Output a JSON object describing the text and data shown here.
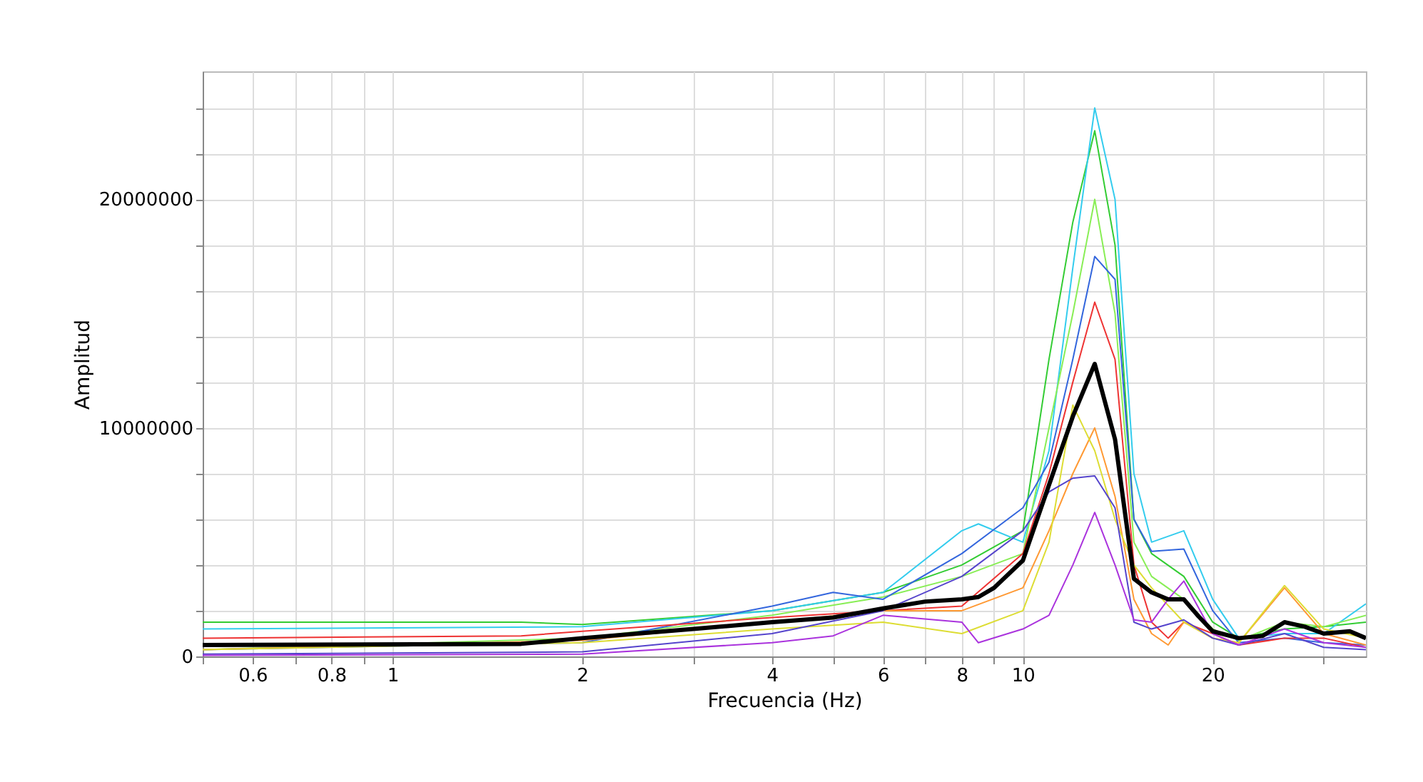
{
  "chart_data": {
    "type": "line",
    "xlabel": "Frecuencia (Hz)",
    "ylabel": "Amplitud",
    "log": "x",
    "grid": true,
    "marker": "none",
    "line_style": "solid",
    "xlim": [
      0.5,
      35
    ],
    "ylim": [
      0,
      25600000
    ],
    "xticks": [
      {
        "value": 0.5,
        "label": null
      },
      0.6,
      {
        "value": 0.7,
        "label": null
      },
      0.8,
      {
        "value": 0.9,
        "label": null
      },
      1,
      2,
      {
        "value": 3,
        "label": null
      },
      4,
      {
        "value": 5,
        "label": null
      },
      6,
      {
        "value": 7,
        "label": null
      },
      8,
      {
        "value": 9,
        "label": null
      },
      10,
      20,
      {
        "value": 30,
        "label": null
      }
    ],
    "yticks": [
      0,
      {
        "value": 2000000,
        "label": null
      },
      {
        "value": 4000000,
        "label": null
      },
      {
        "value": 6000000,
        "label": null
      },
      {
        "value": 8000000,
        "label": null
      },
      10000000,
      {
        "value": 12000000,
        "label": null
      },
      {
        "value": 14000000,
        "label": null
      },
      {
        "value": 16000000,
        "label": null
      },
      {
        "value": 18000000,
        "label": null
      },
      20000000,
      {
        "value": 22000000,
        "label": null
      },
      {
        "value": 24000000,
        "label": null
      }
    ],
    "series": [
      {
        "color": "#33cc33",
        "x": [
          0.5,
          1.6,
          2,
          4,
          6,
          8,
          10,
          11,
          12,
          13,
          14,
          15,
          16,
          18,
          20,
          22,
          26,
          30,
          35
        ],
        "values": [
          1500000,
          1500000,
          1400000,
          2000000,
          2800000,
          4000000,
          5500000,
          13000000,
          19000000,
          23000000,
          18000000,
          6000000,
          4500000,
          3500000,
          1500000,
          800000,
          1200000,
          1300000,
          1500000
        ]
      },
      {
        "color": "#33ccee",
        "x": [
          0.5,
          2,
          4,
          6,
          8,
          8.5,
          10,
          11,
          12,
          13,
          14,
          15,
          16,
          18,
          20,
          22,
          26,
          30,
          35
        ],
        "values": [
          1200000,
          1300000,
          2000000,
          2800000,
          5500000,
          5800000,
          5000000,
          9000000,
          17000000,
          24000000,
          20000000,
          8000000,
          5000000,
          5500000,
          2500000,
          800000,
          1000000,
          1000000,
          2300000
        ]
      },
      {
        "color": "#88ee55",
        "x": [
          0.5,
          2,
          4,
          6,
          8,
          10,
          11,
          12,
          13,
          14,
          15,
          16,
          18,
          20,
          22,
          26,
          30,
          35
        ],
        "values": [
          300000,
          800000,
          1800000,
          2600000,
          3500000,
          4500000,
          10000000,
          15000000,
          20000000,
          15000000,
          5000000,
          3500000,
          2500000,
          1200000,
          700000,
          1500000,
          1300000,
          1800000
        ]
      },
      {
        "color": "#3366dd",
        "x": [
          0.5,
          2,
          4,
          5,
          6,
          8,
          10,
          11,
          12,
          13,
          14,
          15,
          16,
          18,
          20,
          22,
          26,
          30,
          35
        ],
        "values": [
          300000,
          600000,
          2200000,
          2800000,
          2500000,
          4500000,
          6500000,
          8500000,
          13000000,
          17500000,
          16500000,
          6000000,
          4600000,
          4700000,
          2000000,
          600000,
          800000,
          600000,
          500000
        ]
      },
      {
        "color": "#ee3333",
        "x": [
          0.5,
          1.6,
          2,
          4,
          6,
          8,
          10,
          11,
          12,
          13,
          14,
          15,
          16,
          17,
          18,
          20,
          22,
          26,
          30,
          35
        ],
        "values": [
          800000,
          900000,
          1100000,
          1700000,
          2000000,
          2200000,
          4500000,
          8000000,
          12000000,
          15500000,
          13000000,
          4000000,
          1500000,
          800000,
          1500000,
          1000000,
          500000,
          800000,
          800000,
          400000
        ]
      },
      {
        "color": "#ff9933",
        "x": [
          0.5,
          2,
          4,
          6,
          8,
          10,
          11,
          12,
          13,
          14,
          15,
          16,
          17,
          18,
          20,
          22,
          26,
          30,
          35
        ],
        "values": [
          300000,
          700000,
          1500000,
          2000000,
          2000000,
          3000000,
          5500000,
          8000000,
          10000000,
          7000000,
          2500000,
          1000000,
          500000,
          1500000,
          800000,
          600000,
          3000000,
          1000000,
          500000
        ]
      },
      {
        "color": "#dddd33",
        "x": [
          0.5,
          2,
          4,
          6,
          8,
          10,
          11,
          12,
          13,
          14,
          15,
          16,
          18,
          20,
          22,
          26,
          30,
          35
        ],
        "values": [
          300000,
          600000,
          1200000,
          1500000,
          1000000,
          2000000,
          5000000,
          11000000,
          9000000,
          6000000,
          4000000,
          3000000,
          1500000,
          800000,
          600000,
          3100000,
          1200000,
          800000
        ]
      },
      {
        "color": "#5544cc",
        "x": [
          0.5,
          2,
          4,
          6,
          8,
          10,
          11,
          12,
          13,
          14,
          15,
          16,
          18,
          20,
          22,
          26,
          30,
          35
        ],
        "values": [
          100000,
          200000,
          1000000,
          2000000,
          3500000,
          5500000,
          7200000,
          7800000,
          7900000,
          6500000,
          1500000,
          1200000,
          1600000,
          800000,
          500000,
          1000000,
          400000,
          300000
        ]
      },
      {
        "color": "#aa33dd",
        "x": [
          0.5,
          2,
          4,
          5,
          6,
          8,
          8.5,
          10,
          11,
          12,
          13,
          14,
          15,
          16,
          17,
          18,
          20,
          22,
          26,
          30,
          35
        ],
        "values": [
          50000,
          100000,
          600000,
          900000,
          1800000,
          1500000,
          600000,
          1200000,
          1800000,
          4000000,
          6300000,
          4000000,
          1600000,
          1500000,
          2500000,
          3300000,
          1000000,
          500000,
          1200000,
          600000,
          400000
        ]
      },
      {
        "color": "#000000",
        "x": [
          0.5,
          1.6,
          2,
          3,
          4,
          5,
          6,
          7,
          8,
          8.5,
          9,
          10,
          11,
          12,
          13,
          14,
          15,
          16,
          17,
          18,
          19,
          20,
          22,
          24,
          26,
          28,
          30,
          33,
          35
        ],
        "values": [
          500000,
          550000,
          800000,
          1200000,
          1500000,
          1700000,
          2100000,
          2400000,
          2500000,
          2600000,
          3000000,
          4200000,
          7500000,
          10500000,
          12800000,
          9500000,
          3400000,
          2800000,
          2500000,
          2500000,
          1750000,
          1100000,
          800000,
          900000,
          1500000,
          1300000,
          1000000,
          1100000,
          800000
        ]
      }
    ]
  }
}
